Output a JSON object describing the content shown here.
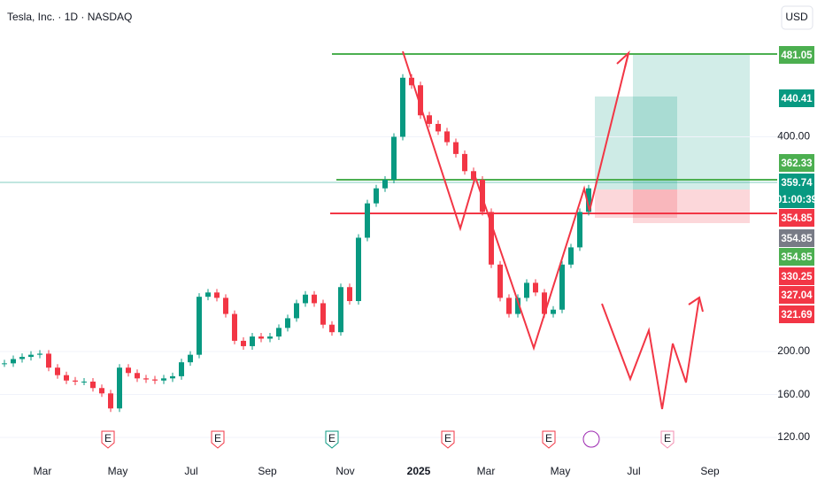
{
  "header": {
    "symbol": "Tesla, Inc. · 1D · NASDAQ",
    "currency": "USD"
  },
  "chart_data": {
    "type": "candlestick",
    "ylim": [
      102.7,
      527.4
    ],
    "yticks": [
      120,
      160,
      200,
      {
        "value": 400,
        "label": "400.00"
      }
    ],
    "closes": [
      189,
      193,
      195,
      197,
      198,
      185,
      178,
      173,
      172,
      172,
      166,
      161,
      147,
      185,
      180,
      175,
      174,
      173,
      175,
      177,
      190,
      197,
      251,
      255,
      250,
      235,
      210,
      205,
      214,
      212,
      214,
      222,
      231,
      245,
      253,
      245,
      225,
      218,
      260,
      247,
      306,
      338,
      352,
      360,
      400,
      455,
      448,
      420,
      412,
      405,
      395,
      384,
      368,
      360,
      330,
      281,
      250,
      235,
      250,
      264,
      255,
      235,
      239,
      281,
      297,
      330,
      352
    ],
    "up_color": "#089981",
    "down_color": "#f23645"
  },
  "price_labels": [
    {
      "label": "481.05",
      "color": "#4caf50"
    },
    {
      "label": "440.41",
      "color": "#089981"
    },
    {
      "label": "362.33",
      "color": "#4caf50"
    },
    {
      "label": "359.74",
      "color": "#089981"
    },
    {
      "label": "01:00:39",
      "color": "#089981"
    },
    {
      "label": "354.85",
      "color": "#f23645"
    },
    {
      "label": "354.85",
      "color": "#787b86"
    },
    {
      "label": "354.85",
      "color": "#4caf50"
    },
    {
      "label": "330.25",
      "color": "#f23645"
    },
    {
      "label": "327.04",
      "color": "#f23645"
    },
    {
      "label": "321.69",
      "color": "#f23645"
    }
  ],
  "axis_labels": [
    "200.00",
    "160.00",
    "120.00"
  ],
  "time_labels": [
    "Mar",
    "May",
    "Jul",
    "Sep",
    "Nov",
    "2025",
    "Mar",
    "May",
    "Jul",
    "Sep"
  ],
  "events": [
    "E",
    "E",
    "E",
    "E",
    "E",
    "E"
  ]
}
